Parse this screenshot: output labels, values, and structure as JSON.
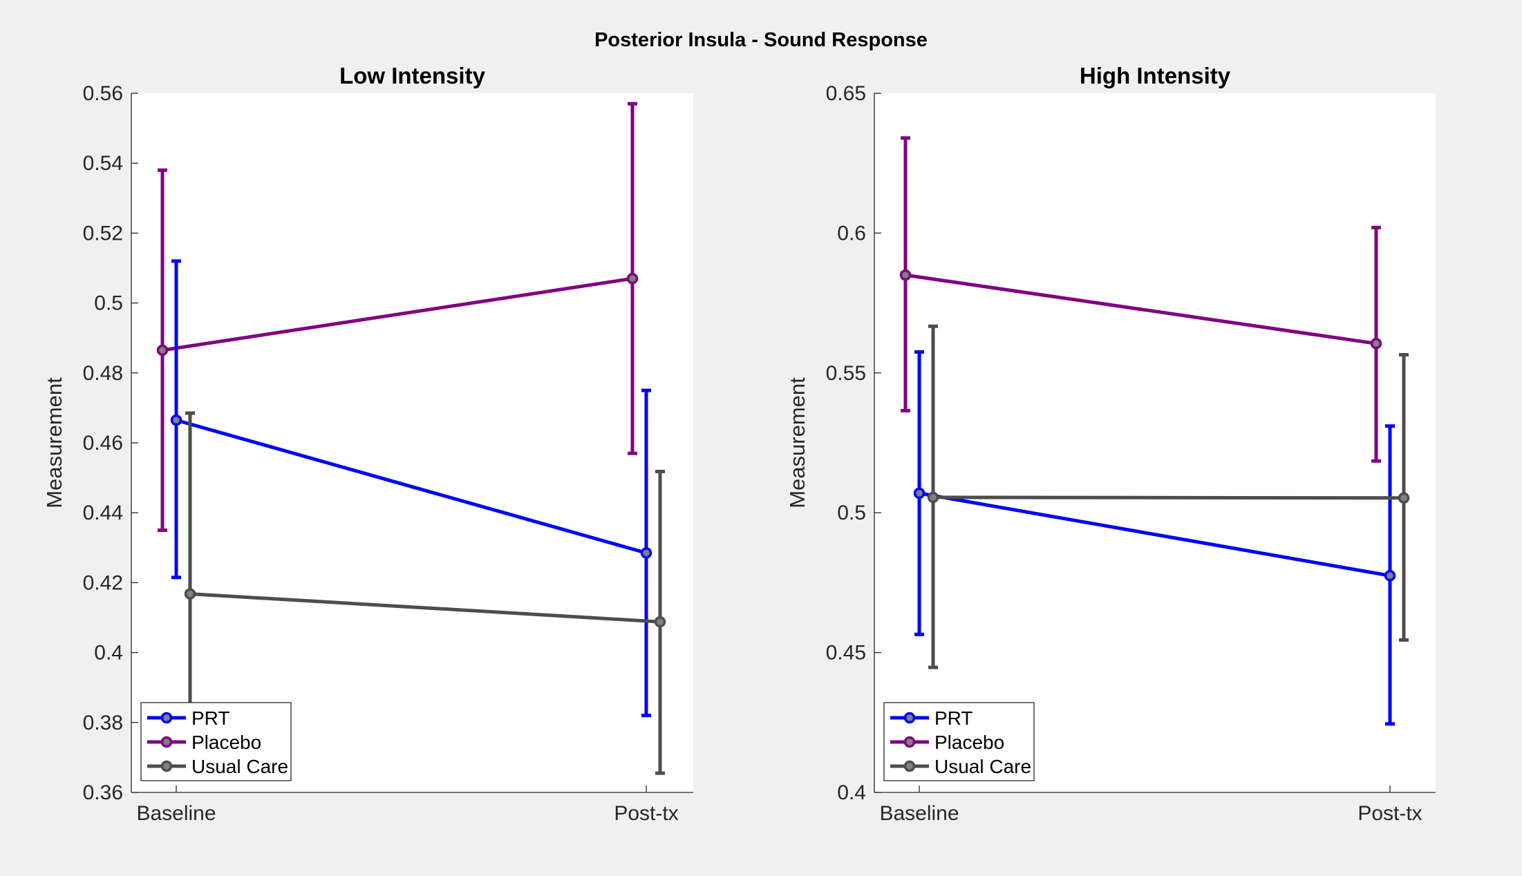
{
  "figure": {
    "suptitle": "Posterior Insula - Sound Response"
  },
  "colors": {
    "background": "#f0f0f0",
    "axes_background": "#ffffff",
    "PRT": "#0000ff",
    "Placebo": "#800080",
    "Usual Care": "#4d4d4d"
  },
  "chart_data": [
    {
      "type": "line",
      "title": "Low Intensity",
      "xlabel": "",
      "ylabel": "Measurement",
      "categories": [
        "Baseline",
        "Post-tx"
      ],
      "ylim": [
        0.36,
        0.56
      ],
      "yticks": [
        "0.36",
        "0.38",
        "0.4",
        "0.42",
        "0.44",
        "0.46",
        "0.48",
        "0.5",
        "0.52",
        "0.54",
        "0.56"
      ],
      "grid": false,
      "legend_location": "bottom-left",
      "error_bars": true,
      "series": [
        {
          "name": "PRT",
          "values": [
            0.4665,
            0.4285
          ],
          "lower": [
            0.4215,
            0.382
          ],
          "upper": [
            0.512,
            0.475
          ],
          "offset": 0
        },
        {
          "name": "Placebo",
          "values": [
            0.4865,
            0.507
          ],
          "lower": [
            0.435,
            0.457
          ],
          "upper": [
            0.538,
            0.557
          ],
          "offset": -1
        },
        {
          "name": "Usual Care",
          "values": [
            0.4168,
            0.4088
          ],
          "lower": [
            0.3645,
            0.3655
          ],
          "upper": [
            0.4685,
            0.4518
          ],
          "offset": 1
        }
      ]
    },
    {
      "type": "line",
      "title": "High Intensity",
      "xlabel": "",
      "ylabel": "Measurement",
      "categories": [
        "Baseline",
        "Post-tx"
      ],
      "ylim": [
        0.4,
        0.65
      ],
      "yticks": [
        "0.4",
        "0.45",
        "0.5",
        "0.55",
        "0.6",
        "0.65"
      ],
      "grid": false,
      "legend_location": "bottom-left",
      "error_bars": true,
      "series": [
        {
          "name": "PRT",
          "values": [
            0.507,
            0.4775
          ],
          "lower": [
            0.4565,
            0.4245
          ],
          "upper": [
            0.5575,
            0.531
          ],
          "offset": 0
        },
        {
          "name": "Placebo",
          "values": [
            0.585,
            0.5605
          ],
          "lower": [
            0.5365,
            0.5185
          ],
          "upper": [
            0.634,
            0.602
          ],
          "offset": -1
        },
        {
          "name": "Usual Care",
          "values": [
            0.5055,
            0.5053
          ],
          "lower": [
            0.4447,
            0.4545
          ],
          "upper": [
            0.5667,
            0.5565
          ],
          "offset": 1
        }
      ]
    }
  ]
}
